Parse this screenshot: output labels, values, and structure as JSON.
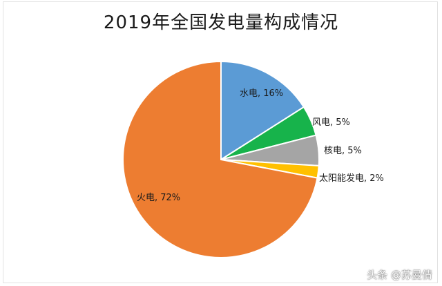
{
  "title": "2019年全国发电量构成情况",
  "watermark": "头条 @苏曼倩",
  "chart_data": {
    "type": "pie",
    "title": "2019年全国发电量构成情况",
    "start_angle_deg": 0,
    "direction": "clockwise",
    "slices": [
      {
        "label": "水电",
        "value": 16,
        "display": "水电, 16%",
        "color": "#5b9bd5"
      },
      {
        "label": "风电",
        "value": 5,
        "display": "风电, 5%",
        "color": "#17b34b"
      },
      {
        "label": "核电",
        "value": 5,
        "display": "核电, 5%",
        "color": "#a5a5a5"
      },
      {
        "label": "太阳能发电",
        "value": 2,
        "display": "太阳能发电, 2%",
        "color": "#ffc000"
      },
      {
        "label": "火电",
        "value": 72,
        "display": "火电, 72%",
        "color": "#ed7d31"
      }
    ]
  }
}
